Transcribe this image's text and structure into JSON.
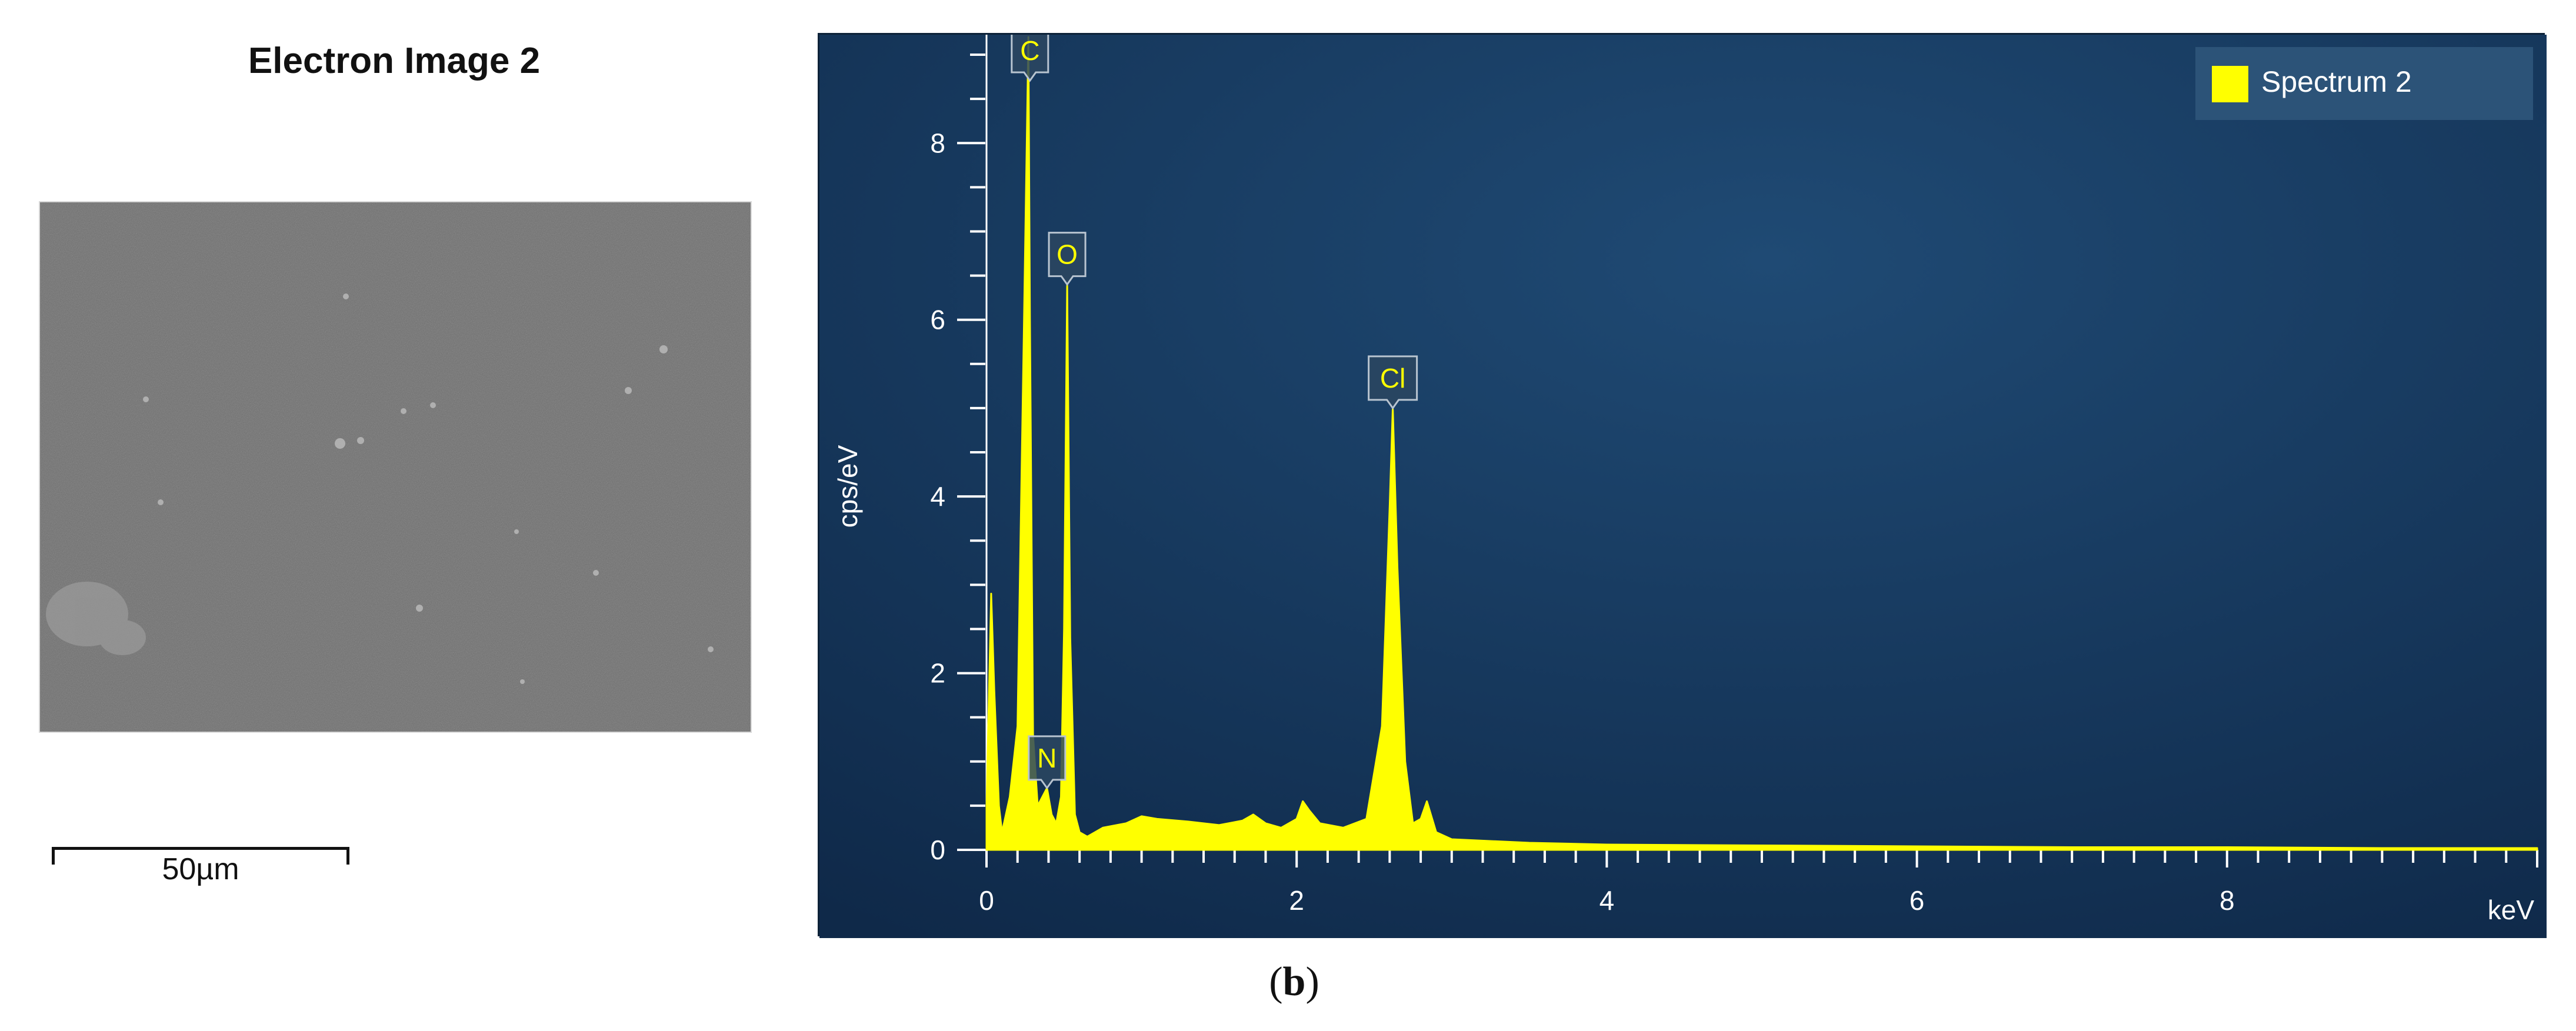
{
  "electron_image": {
    "title": "Electron Image 2",
    "scale_bar_label": "50µm"
  },
  "panel_label": {
    "open": "(",
    "letter": "b",
    "close": ")"
  },
  "colors": {
    "background_top": "#1d4670",
    "background_bottom": "#0f2a4b",
    "spectrum": "#ffff00"
  },
  "chart_data": {
    "type": "area",
    "title": "",
    "xlabel": "keV",
    "ylabel": "cps/eV",
    "xlim": [
      0,
      10
    ],
    "ylim": [
      0,
      9.2
    ],
    "x_ticks": [
      0,
      2,
      4,
      6,
      8
    ],
    "y_ticks": [
      0,
      2,
      4,
      6,
      8
    ],
    "grid": false,
    "legend_position": "top-right",
    "series": [
      {
        "name": "Spectrum 2",
        "x": [
          0,
          0.03,
          0.05,
          0.08,
          0.1,
          0.15,
          0.2,
          0.24,
          0.27,
          0.28,
          0.3,
          0.33,
          0.36,
          0.39,
          0.42,
          0.45,
          0.48,
          0.5,
          0.52,
          0.54,
          0.57,
          0.6,
          0.65,
          0.75,
          0.9,
          1.0,
          1.1,
          1.3,
          1.5,
          1.65,
          1.72,
          1.8,
          1.9,
          2.0,
          2.04,
          2.08,
          2.15,
          2.3,
          2.45,
          2.55,
          2.6,
          2.62,
          2.65,
          2.7,
          2.75,
          2.8,
          2.84,
          2.9,
          3.0,
          3.5,
          4.0,
          5.0,
          6.0,
          7.0,
          8.0,
          9.0,
          10.0
        ],
        "y": [
          0.5,
          2.9,
          1.8,
          0.5,
          0.2,
          0.6,
          1.4,
          5.8,
          9.2,
          6.0,
          1.3,
          0.5,
          0.6,
          0.7,
          0.4,
          0.3,
          0.6,
          2.5,
          6.4,
          2.4,
          0.4,
          0.2,
          0.15,
          0.25,
          0.3,
          0.38,
          0.35,
          0.32,
          0.28,
          0.33,
          0.4,
          0.3,
          0.25,
          0.35,
          0.55,
          0.45,
          0.3,
          0.25,
          0.35,
          1.4,
          3.9,
          5.0,
          3.2,
          1.0,
          0.3,
          0.35,
          0.55,
          0.2,
          0.12,
          0.08,
          0.06,
          0.05,
          0.04,
          0.03,
          0.03,
          0.02,
          0.02
        ]
      }
    ],
    "annotations": [
      {
        "label": "C",
        "x": 0.28,
        "y": 9.2
      },
      {
        "label": "O",
        "x": 0.52,
        "y": 6.4
      },
      {
        "label": "N",
        "x": 0.39,
        "y": 0.7
      },
      {
        "label": "Cl",
        "x": 2.62,
        "y": 5.0
      }
    ]
  }
}
